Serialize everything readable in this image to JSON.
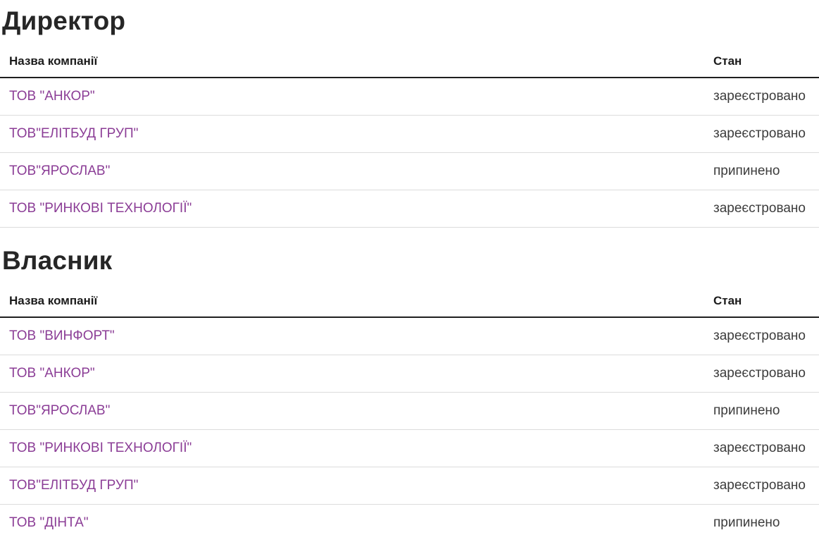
{
  "colors": {
    "link": "#8b3d96",
    "heading": "#262626",
    "header_text": "#1b1b1b",
    "header_border": "#1f1f1f",
    "row_border": "#dcdcdc",
    "status_text": "#3c3c3c",
    "bottom_bar": "#e8e8e8"
  },
  "sections": [
    {
      "title": "Директор",
      "columns": {
        "name": "Назва компанії",
        "status": "Стан"
      },
      "rows": [
        {
          "company": "ТОВ \"АНКОР\"",
          "status": "зареєстровано"
        },
        {
          "company": "ТОВ\"ЕЛІТБУД ГРУП\"",
          "status": "зареєстровано"
        },
        {
          "company": "ТОВ\"ЯРОСЛАВ\"",
          "status": "припинено"
        },
        {
          "company": "ТОВ \"РИНКОВІ ТЕХНОЛОГІЇ\"",
          "status": "зареєстровано"
        }
      ]
    },
    {
      "title": "Власник",
      "columns": {
        "name": "Назва компанії",
        "status": "Стан"
      },
      "rows": [
        {
          "company": "ТОВ \"ВИНФОРТ\"",
          "status": "зареєстровано"
        },
        {
          "company": "ТОВ \"АНКОР\"",
          "status": "зареєстровано"
        },
        {
          "company": "ТОВ\"ЯРОСЛАВ\"",
          "status": "припинено"
        },
        {
          "company": "ТОВ \"РИНКОВІ ТЕХНОЛОГІЇ\"",
          "status": "зареєстровано"
        },
        {
          "company": "ТОВ\"ЕЛІТБУД ГРУП\"",
          "status": "зареєстровано"
        },
        {
          "company": "ТОВ \"ДІНТА\"",
          "status": "припинено"
        }
      ]
    }
  ]
}
